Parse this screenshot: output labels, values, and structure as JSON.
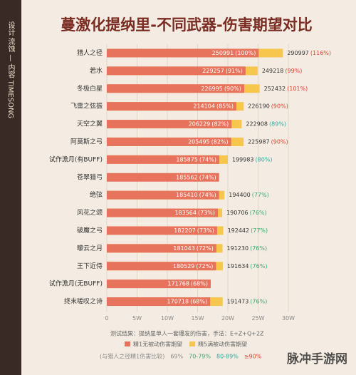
{
  "chart_data": {
    "type": "bar",
    "orientation": "horizontal",
    "title": "蔓激化提纳里-不同武器-伤害期望对比",
    "sidebar": "设计 流蚀 — 内容 TIMESONG",
    "categories": [
      "猎人之径",
      "若水",
      "冬极白星",
      "飞雷之弦振",
      "天空之翼",
      "阿莫斯之弓",
      "试作澹月(有BUFF)",
      "苍翠猎弓",
      "绝弦",
      "风花之颂",
      "破魔之弓",
      "曚云之月",
      "王下近侍",
      "试作澹月(无BUFF)",
      "终末嗟叹之诗"
    ],
    "series": [
      {
        "name": "精1无被动伤害期望",
        "color": "#e8735c",
        "values": [
          250991,
          229257,
          226995,
          214104,
          206229,
          205495,
          185875,
          185562,
          185410,
          183564,
          182207,
          181043,
          180529,
          171768,
          170718
        ],
        "percent_labels": [
          "(100%)",
          "(91%)",
          "(90%)",
          "(85%)",
          "(82%)",
          "(82%)",
          "(74%)",
          "(74%)",
          "(74%)",
          "(73%)",
          "(73%)",
          "(72%)",
          "(72%)",
          "(68%)",
          "(68%)"
        ]
      },
      {
        "name": "精5满被动伤害期望",
        "color": "#f6c64d",
        "values": [
          290997,
          249218,
          252432,
          226190,
          222908,
          225987,
          199983,
          null,
          194400,
          190706,
          192442,
          191230,
          191634,
          null,
          191473
        ],
        "percent_labels": [
          "(116%)",
          "(99%)",
          "(101%)",
          "(90%)",
          "(89%)",
          "(90%)",
          "(80%)",
          null,
          "(77%)",
          "(76%)",
          "(77%)",
          "(76%)",
          "(76%)",
          null,
          "(76%)"
        ],
        "label_colors": [
          "#d9432f",
          "#d9432f",
          "#d9432f",
          "#d9432f",
          "#2fa9a0",
          "#d9432f",
          "#2fa9a0",
          null,
          "#3aa86a",
          "#3aa86a",
          "#3aa86a",
          "#3aa86a",
          "#3aa86a",
          null,
          "#3aa86a"
        ]
      }
    ],
    "xlim": [
      0,
      300000
    ],
    "xticks": [
      0,
      {
        "value": 50000,
        "label": "5W"
      },
      {
        "value": 100000,
        "label": "10W"
      },
      {
        "value": 150000,
        "label": "15W"
      },
      {
        "value": 200000,
        "label": "20W"
      },
      {
        "value": 250000,
        "label": "25W"
      },
      {
        "value": 300000,
        "label": "30W"
      }
    ],
    "grid": true,
    "note": "测试结果：提纳里单人一套爆发的伤害，手法：E+Z+Q+2Z",
    "tier_title": "(与猎人之径精1伤害比较)",
    "tiers": [
      {
        "label": "69%",
        "color": "#888888"
      },
      {
        "label": "70-79%",
        "color": "#3aa86a"
      },
      {
        "label": "80-89%",
        "color": "#2fa9a0"
      },
      {
        "label": "≥90%",
        "color": "#d9432f"
      }
    ],
    "watermark": "脉冲手游网"
  }
}
